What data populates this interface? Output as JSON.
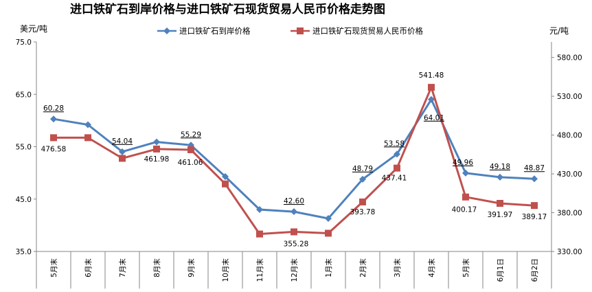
{
  "chart_data": {
    "type": "line",
    "title": "进口铁矿石到岸价格与进口铁矿石现货贸易人民币价格走势图",
    "left_axis": {
      "unit": "美元/吨",
      "ticks": [
        "75.0",
        "65.0",
        "55.0",
        "45.0",
        "35.0"
      ],
      "range": [
        35,
        75
      ]
    },
    "right_axis": {
      "unit": "元/吨",
      "ticks": [
        "580.00",
        "530.00",
        "480.00",
        "430.00",
        "380.00",
        "330.00"
      ],
      "range": [
        330,
        600
      ]
    },
    "categories": [
      "5月末",
      "6月末",
      "7月末",
      "8月末",
      "9月末",
      "10月末",
      "11月末",
      "12月末",
      "1月末",
      "2月末",
      "3月末",
      "4月末",
      "5月末",
      "6月1日",
      "6月2日"
    ],
    "grid": false,
    "legend_position": "top",
    "series": [
      {
        "name": "进口铁矿石到岸价格",
        "axis": "left",
        "color": "#4F81BD",
        "marker": "diamond",
        "values": [
          60.28,
          59.2,
          54.04,
          55.9,
          55.29,
          49.3,
          43.0,
          42.6,
          41.3,
          48.79,
          53.58,
          64.01,
          49.96,
          49.18,
          48.87
        ],
        "labels": [
          "60.28",
          "",
          "54.04",
          "",
          "55.29",
          "",
          "",
          "42.60",
          "",
          "48.79",
          "53.58",
          "64.01",
          "49.96",
          "49.18",
          "48.87"
        ]
      },
      {
        "name": "进口铁矿石现货贸易人民币价格",
        "axis": "right",
        "color": "#C0504D",
        "marker": "square",
        "values": [
          476.58,
          476.6,
          450.0,
          461.98,
          461.06,
          417.0,
          352.5,
          355.28,
          353.5,
          393.78,
          437.41,
          541.48,
          400.17,
          391.97,
          389.17
        ],
        "labels": [
          "476.58",
          "",
          "",
          "461.98",
          "461.06",
          "",
          "",
          "355.28",
          "",
          "393.78",
          "437.41",
          "541.48",
          "400.17",
          "391.97",
          "389.17"
        ]
      }
    ]
  }
}
